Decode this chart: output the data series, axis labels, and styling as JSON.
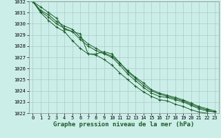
{
  "xlabel": "Graphe pression niveau de la mer (hPa)",
  "background_color": "#cceee8",
  "grid_color": "#aacccc",
  "line_color": "#1a5c28",
  "ylim": [
    1022,
    1032
  ],
  "xlim": [
    0,
    23
  ],
  "yticks": [
    1022,
    1023,
    1024,
    1025,
    1026,
    1027,
    1028,
    1029,
    1030,
    1031,
    1032
  ],
  "xticks": [
    0,
    1,
    2,
    3,
    4,
    5,
    6,
    7,
    8,
    9,
    10,
    11,
    12,
    13,
    14,
    15,
    16,
    17,
    18,
    19,
    20,
    21,
    22,
    23
  ],
  "series": [
    [
      1032.0,
      1031.5,
      1031.0,
      1030.5,
      1029.5,
      1029.3,
      1029.1,
      1027.3,
      1027.3,
      1027.5,
      1027.3,
      1026.5,
      1025.8,
      1025.2,
      1024.7,
      1024.1,
      1023.8,
      1023.6,
      1023.4,
      1023.2,
      1022.9,
      1022.6,
      1022.4,
      1022.2
    ],
    [
      1032.0,
      1031.2,
      1030.8,
      1030.2,
      1029.8,
      1029.5,
      1028.8,
      1028.2,
      1027.8,
      1027.4,
      1027.1,
      1026.5,
      1025.7,
      1025.1,
      1024.5,
      1024.0,
      1023.7,
      1023.5,
      1023.3,
      1023.1,
      1022.8,
      1022.5,
      1022.3,
      1022.1
    ],
    [
      1032.0,
      1031.1,
      1030.6,
      1030.0,
      1029.6,
      1029.3,
      1028.6,
      1028.0,
      1027.6,
      1027.3,
      1027.0,
      1026.3,
      1025.5,
      1024.9,
      1024.3,
      1023.8,
      1023.5,
      1023.4,
      1023.2,
      1023.0,
      1022.7,
      1022.4,
      1022.2,
      1022.1
    ],
    [
      1032.0,
      1031.0,
      1030.3,
      1029.7,
      1029.3,
      1028.5,
      1027.8,
      1027.3,
      1027.2,
      1026.8,
      1026.3,
      1025.6,
      1025.0,
      1024.4,
      1023.9,
      1023.5,
      1023.2,
      1023.1,
      1022.8,
      1022.6,
      1022.3,
      1022.1,
      1022.0,
      1021.9
    ]
  ],
  "marker": "+",
  "markersize": 3,
  "linewidth": 0.7,
  "tick_fontsize": 5,
  "xlabel_fontsize": 6.5
}
